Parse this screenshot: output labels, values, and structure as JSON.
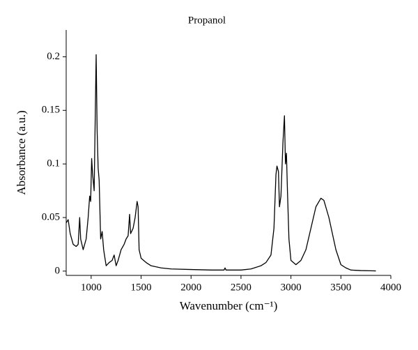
{
  "chart_data": {
    "type": "line",
    "title": "Propanol",
    "x_label": "Wavenumber (cm⁻¹)",
    "y_label": "Absorbance (a.u.)",
    "x": [
      750,
      770,
      790,
      820,
      850,
      870,
      885,
      895,
      920,
      950,
      970,
      985,
      995,
      1005,
      1015,
      1030,
      1050,
      1060,
      1070,
      1080,
      1095,
      1110,
      1125,
      1150,
      1180,
      1210,
      1230,
      1250,
      1270,
      1300,
      1330,
      1350,
      1370,
      1385,
      1395,
      1420,
      1440,
      1460,
      1470,
      1480,
      1500,
      1550,
      1600,
      1700,
      1800,
      2000,
      2200,
      2330,
      2340,
      2350,
      2500,
      2600,
      2700,
      2750,
      2800,
      2830,
      2850,
      2860,
      2875,
      2885,
      2900,
      2920,
      2935,
      2945,
      2955,
      2965,
      2980,
      3000,
      3050,
      3100,
      3150,
      3200,
      3250,
      3300,
      3330,
      3380,
      3450,
      3500,
      3550,
      3600,
      3700,
      3800,
      3850
    ],
    "series": [
      {
        "color": "#000000",
        "values": [
          0.045,
          0.048,
          0.035,
          0.025,
          0.023,
          0.025,
          0.05,
          0.03,
          0.02,
          0.03,
          0.05,
          0.07,
          0.065,
          0.105,
          0.09,
          0.075,
          0.202,
          0.13,
          0.096,
          0.085,
          0.03,
          0.037,
          0.02,
          0.005,
          0.008,
          0.01,
          0.015,
          0.005,
          0.01,
          0.02,
          0.025,
          0.03,
          0.033,
          0.053,
          0.035,
          0.04,
          0.05,
          0.065,
          0.06,
          0.02,
          0.012,
          0.008,
          0.005,
          0.003,
          0.002,
          0.0015,
          0.001,
          0.001,
          0.003,
          0.001,
          0.001,
          0.002,
          0.005,
          0.008,
          0.015,
          0.04,
          0.09,
          0.098,
          0.093,
          0.06,
          0.07,
          0.12,
          0.145,
          0.1,
          0.11,
          0.075,
          0.03,
          0.01,
          0.006,
          0.01,
          0.02,
          0.04,
          0.06,
          0.068,
          0.066,
          0.05,
          0.02,
          0.006,
          0.003,
          0.001,
          0.0005,
          0.0003,
          0.0002
        ]
      }
    ],
    "xlim": [
      750,
      4000
    ],
    "ylim": [
      -0.004,
      0.225
    ],
    "xticks": [
      1000,
      1500,
      2000,
      2500,
      3000,
      3500,
      4000
    ],
    "yticks": [
      0,
      0.05,
      0.1,
      0.15,
      0.2
    ]
  }
}
